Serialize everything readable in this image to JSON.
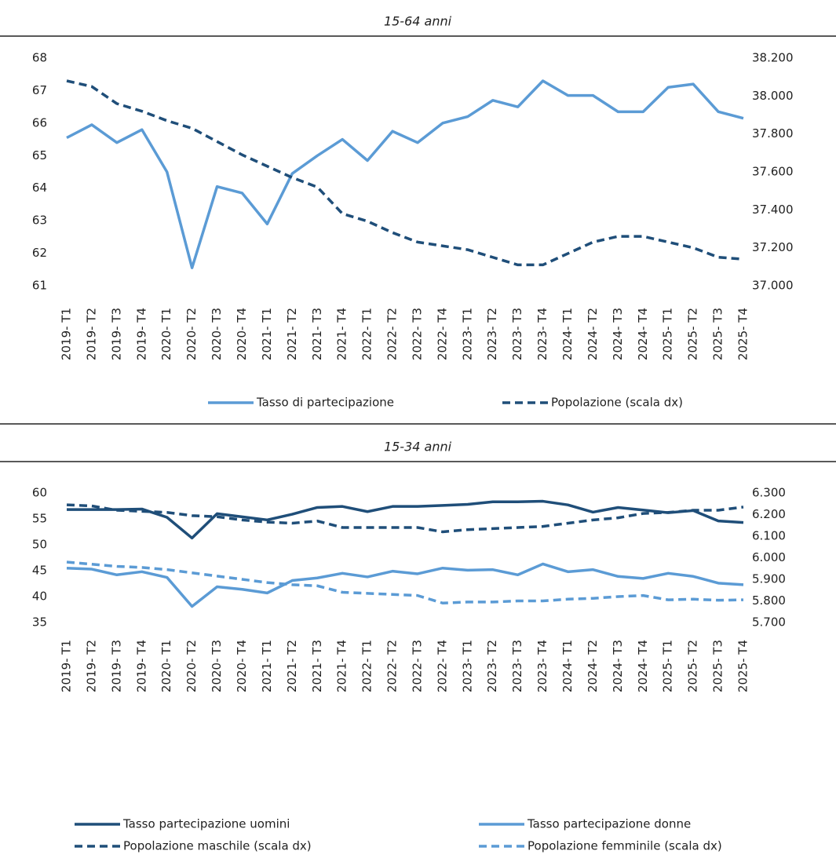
{
  "chart_data": [
    {
      "type": "line",
      "title": "15-64 anni",
      "categories": [
        "2019- T1",
        "2019- T2",
        "2019- T3",
        "2019- T4",
        "2020- T1",
        "2020- T2",
        "2020- T3",
        "2020- T4",
        "2021- T1",
        "2021- T2",
        "2021- T3",
        "2021- T4",
        "2022- T1",
        "2022- T2",
        "2022- T3",
        "2022- T4",
        "2023- T1",
        "2023- T2",
        "2023- T3",
        "2023- T4",
        "2024- T1",
        "2024- T2",
        "2024- T3",
        "2024- T4",
        "2025- T1",
        "2025- T2",
        "2025- T3",
        "2025- T4"
      ],
      "series": [
        {
          "name": "Tasso di partecipazione",
          "color": "#5b9bd5",
          "dash": false,
          "values": [
            65.55,
            65.95,
            65.4,
            65.8,
            64.5,
            61.55,
            64.05,
            63.85,
            62.9,
            64.45,
            65.0,
            65.5,
            64.85,
            65.75,
            65.4,
            66.0,
            66.2,
            66.7,
            66.5,
            67.3,
            66.85,
            66.85,
            66.35,
            66.35,
            67.1,
            67.2,
            66.35,
            66.15
          ]
        },
        {
          "name": "Popolazione (scala dx)",
          "color": "#1f4e79",
          "dash": true,
          "axis": "y2",
          "values": [
            38080,
            38050,
            37960,
            37920,
            37870,
            37830,
            37760,
            37690,
            37630,
            37570,
            37520,
            37380,
            37340,
            37280,
            37230,
            37210,
            37190,
            37150,
            37110,
            37110,
            37170,
            37230,
            37260,
            37260,
            37230,
            37200,
            37150,
            37140
          ]
        }
      ],
      "ylim": [
        61,
        68
      ],
      "yticks": [
        61,
        62,
        63,
        64,
        65,
        66,
        67,
        68
      ],
      "y2lim": [
        37000,
        38200
      ],
      "y2ticks": [
        {
          "value": 37000,
          "label": "37.000"
        },
        {
          "value": 37200,
          "label": "37.200"
        },
        {
          "value": 37400,
          "label": "37.400"
        },
        {
          "value": 37600,
          "label": "37.600"
        },
        {
          "value": 37800,
          "label": "37.800"
        },
        {
          "value": 38000,
          "label": "38.000"
        },
        {
          "value": 38200,
          "label": "38.200"
        }
      ],
      "grid": false,
      "legend": "bottom"
    },
    {
      "type": "line",
      "title": "15-34 anni",
      "categories": [
        "2019- T1",
        "2019- T2",
        "2019- T3",
        "2019- T4",
        "2020- T1",
        "2020- T2",
        "2020- T3",
        "2020- T4",
        "2021- T1",
        "2021- T2",
        "2021- T3",
        "2021- T4",
        "2022- T1",
        "2022- T2",
        "2022- T3",
        "2022- T4",
        "2023- T1",
        "2023- T2",
        "2023- T3",
        "2023- T4",
        "2024- T1",
        "2024- T2",
        "2024- T3",
        "2024- T4",
        "2025- T1",
        "2025- T2",
        "2025- T3",
        "2025- T4"
      ],
      "series": [
        {
          "name": "Tasso partecipazione uomini",
          "color": "#1f4e79",
          "dash": false,
          "values": [
            56.8,
            56.8,
            56.8,
            56.9,
            55.3,
            51.3,
            56.0,
            55.4,
            54.8,
            55.9,
            57.2,
            57.4,
            56.4,
            57.4,
            57.4,
            57.6,
            57.8,
            58.3,
            58.3,
            58.4,
            57.7,
            56.3,
            57.2,
            56.7,
            56.2,
            56.6,
            54.6,
            54.3
          ]
        },
        {
          "name": "Tasso partecipazione donne",
          "color": "#5b9bd5",
          "dash": false,
          "values": [
            45.5,
            45.3,
            44.2,
            44.8,
            43.7,
            38.1,
            41.9,
            41.4,
            40.7,
            43.1,
            43.6,
            44.5,
            43.8,
            44.9,
            44.4,
            45.5,
            45.1,
            45.2,
            44.2,
            46.3,
            44.8,
            45.2,
            43.9,
            43.5,
            44.5,
            43.9,
            42.6,
            42.3
          ]
        },
        {
          "name": "Popolazione maschile (scala dx)",
          "color": "#1f4e79",
          "dash": true,
          "axis": "y2",
          "values": [
            6245,
            6240,
            6220,
            6215,
            6210,
            6195,
            6190,
            6175,
            6165,
            6160,
            6170,
            6140,
            6140,
            6140,
            6140,
            6120,
            6130,
            6135,
            6140,
            6145,
            6160,
            6175,
            6185,
            6205,
            6210,
            6220,
            6220,
            6235
          ]
        },
        {
          "name": "Popolazione femminile (scala dx)",
          "color": "#5b9bd5",
          "dash": true,
          "axis": "y2",
          "values": [
            5980,
            5970,
            5960,
            5955,
            5945,
            5930,
            5915,
            5900,
            5885,
            5875,
            5870,
            5840,
            5835,
            5830,
            5825,
            5790,
            5795,
            5795,
            5800,
            5800,
            5808,
            5812,
            5820,
            5825,
            5805,
            5808,
            5803,
            5805
          ]
        }
      ],
      "ylim": [
        35,
        60
      ],
      "yticks": [
        35,
        40,
        45,
        50,
        55,
        60
      ],
      "y2lim": [
        5700,
        6300
      ],
      "y2ticks": [
        {
          "value": 5700,
          "label": "5.700"
        },
        {
          "value": 5800,
          "label": "5.800"
        },
        {
          "value": 5900,
          "label": "5.900"
        },
        {
          "value": 6000,
          "label": "6.000"
        },
        {
          "value": 6100,
          "label": "6.100"
        },
        {
          "value": 6200,
          "label": "6.200"
        },
        {
          "value": 6300,
          "label": "6.300"
        }
      ],
      "grid": false,
      "legend": "bottom"
    }
  ]
}
